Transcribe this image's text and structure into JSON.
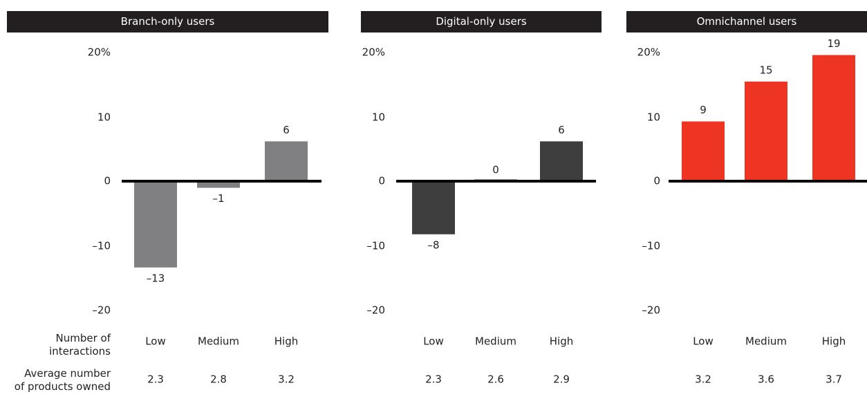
{
  "row_labels": {
    "interactions": "Number of interactions",
    "interactions_line1": "Number of",
    "interactions_line2": "interactions",
    "products_line1": "Average number",
    "products_line2": "of products owned"
  },
  "chart_data": [
    {
      "type": "bar",
      "title": "Branch-only users",
      "categories": [
        "Low",
        "Medium",
        "High"
      ],
      "values": [
        -13,
        -1,
        6
      ],
      "value_labels": [
        "–13",
        "–1",
        "6"
      ],
      "avg_products": [
        "2.3",
        "2.8",
        "3.2"
      ],
      "ytick_labels": [
        "20%",
        "10",
        "0",
        "–10",
        "–20"
      ],
      "ylim": [
        -20,
        20
      ],
      "color": "#808083"
    },
    {
      "type": "bar",
      "title": "Digital-only users",
      "categories": [
        "Low",
        "Medium",
        "High"
      ],
      "values": [
        -8,
        0,
        6
      ],
      "value_labels": [
        "–8",
        "0",
        "6"
      ],
      "avg_products": [
        "2.3",
        "2.6",
        "2.9"
      ],
      "ytick_labels": [
        "20%",
        "10",
        "0",
        "–10",
        "–20"
      ],
      "ylim": [
        -20,
        20
      ],
      "color": "#3e3e3e"
    },
    {
      "type": "bar",
      "title": "Omnichannel users",
      "categories": [
        "Low",
        "Medium",
        "High"
      ],
      "values": [
        9,
        15,
        19
      ],
      "value_labels": [
        "9",
        "15",
        "19"
      ],
      "avg_products": [
        "3.2",
        "3.6",
        "3.7"
      ],
      "ytick_labels": [
        "20%",
        "10",
        "0",
        "–10",
        "–20"
      ],
      "ylim": [
        -20,
        20
      ],
      "color": "#ee3524"
    }
  ]
}
